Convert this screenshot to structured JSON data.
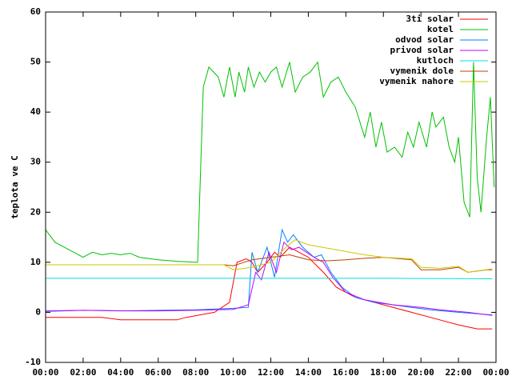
{
  "chart_data": {
    "type": "line",
    "y_label": "teplota ve C",
    "xlim": [
      0,
      24
    ],
    "ylim": [
      -10,
      60
    ],
    "xticks": [
      {
        "value": 0,
        "label": "00:00"
      },
      {
        "value": 2,
        "label": "02:00"
      },
      {
        "value": 4,
        "label": "04:00"
      },
      {
        "value": 6,
        "label": "06:00"
      },
      {
        "value": 8,
        "label": "08:00"
      },
      {
        "value": 10,
        "label": "10:00"
      },
      {
        "value": 12,
        "label": "12:00"
      },
      {
        "value": 14,
        "label": "14:00"
      },
      {
        "value": 16,
        "label": "16:00"
      },
      {
        "value": 18,
        "label": "18:00"
      },
      {
        "value": 20,
        "label": "20:00"
      },
      {
        "value": 22,
        "label": "22:00"
      },
      {
        "value": 24,
        "label": "00:00"
      }
    ],
    "yticks": [
      -10,
      0,
      10,
      20,
      30,
      40,
      50,
      60
    ],
    "legend": "top-right",
    "series": [
      {
        "name": "3ti solar",
        "color": "#ff0000",
        "x": [
          0,
          3,
          4,
          7,
          7.5,
          9,
          9.8,
          10.2,
          10.7,
          11,
          11.3,
          11.8,
          12.2,
          12.5,
          13,
          13.5,
          14,
          14.8,
          15.5,
          16.5,
          18,
          19.5,
          21,
          22,
          23,
          23.8
        ],
        "values": [
          -1,
          -1,
          -1.5,
          -1.5,
          -1,
          0,
          2,
          10,
          10.7,
          10,
          8,
          10,
          12,
          11,
          13,
          12,
          11,
          8,
          5,
          3,
          1.5,
          0,
          -1.5,
          -2.5,
          -3.3,
          -3.3
        ]
      },
      {
        "name": "kotel",
        "color": "#00c000",
        "x": [
          0,
          0.5,
          1,
          1.5,
          2,
          2.5,
          3,
          3.5,
          4,
          4.5,
          5,
          6,
          7,
          8,
          8.1,
          8.4,
          8.7,
          9.2,
          9.5,
          9.8,
          10.1,
          10.3,
          10.6,
          10.8,
          11.1,
          11.4,
          11.7,
          12,
          12.3,
          12.6,
          13,
          13.3,
          13.7,
          14.1,
          14.5,
          14.8,
          15.2,
          15.6,
          16,
          16.5,
          17,
          17.3,
          17.6,
          17.9,
          18.2,
          18.6,
          19,
          19.3,
          19.6,
          19.9,
          20.3,
          20.6,
          20.8,
          21.2,
          21.5,
          21.8,
          22,
          22.3,
          22.6,
          22.8,
          23,
          23.2,
          23.5,
          23.7,
          23.9
        ],
        "values": [
          16.5,
          14,
          13,
          12,
          11,
          12,
          11.5,
          11.8,
          11.5,
          11.8,
          11,
          10.5,
          10.2,
          10,
          10,
          45,
          49,
          47,
          43,
          49,
          43,
          48,
          44,
          49,
          45,
          48,
          46,
          48,
          49,
          45,
          50,
          44,
          47,
          48,
          50,
          43,
          46,
          47,
          44,
          41,
          35,
          40,
          33,
          38,
          32,
          33,
          31,
          36,
          33,
          38,
          33,
          40,
          37,
          39,
          33,
          30,
          35,
          22,
          19,
          50,
          27,
          20,
          35,
          43,
          25
        ]
      },
      {
        "name": "odvod solar",
        "color": "#0080ff",
        "x": [
          0,
          2,
          4,
          6,
          8,
          10,
          10.8,
          11,
          11.3,
          11.8,
          12.2,
          12.6,
          12.9,
          13.2,
          13.7,
          14.3,
          14.7,
          15.2,
          15.8,
          16.5,
          17.5,
          18.5,
          19.5,
          20.5,
          22,
          23.8
        ],
        "values": [
          0.2,
          0.4,
          0.3,
          0.4,
          0.5,
          0.8,
          1,
          12,
          8,
          13,
          7,
          16.5,
          14,
          15.5,
          13,
          11,
          11.5,
          8,
          5,
          3,
          2,
          1.5,
          1,
          0.5,
          0,
          -0.5
        ]
      },
      {
        "name": "privod solar",
        "color": "#c000ff",
        "x": [
          0,
          2,
          4.5,
          6,
          8,
          10,
          10.8,
          11.2,
          11.5,
          11.9,
          12.3,
          12.7,
          13.1,
          13.5,
          14.3,
          14.8,
          15.3,
          16,
          17,
          18.5,
          20,
          21,
          22.5,
          23.8
        ],
        "values": [
          0.3,
          0.4,
          0.3,
          0.3,
          0.4,
          0.6,
          1.5,
          8,
          6.5,
          12,
          8,
          14,
          12.5,
          13,
          11,
          10,
          7,
          4,
          2.5,
          1.5,
          1,
          0.5,
          0,
          -0.6
        ]
      },
      {
        "name": "kutloch",
        "color": "#00dddd",
        "x": [
          0,
          6,
          12,
          18,
          23.8
        ],
        "values": [
          6.8,
          6.8,
          6.8,
          6.8,
          6.7
        ]
      },
      {
        "name": "vymenik dole",
        "color": "#c04000",
        "x": [
          0,
          9.5,
          10,
          11,
          12,
          13,
          14,
          15,
          16,
          17,
          18,
          19.5,
          20,
          21,
          22,
          22.5,
          23.5,
          23.8
        ],
        "values": [
          9.5,
          9.5,
          9.3,
          10.5,
          11,
          11.5,
          10.5,
          10.3,
          10.5,
          10.8,
          11,
          10.5,
          8.5,
          8.5,
          9,
          8,
          8.5,
          8.5
        ]
      },
      {
        "name": "vymenik nahore",
        "color": "#c8c800",
        "x": [
          0,
          9.5,
          10,
          11,
          12,
          12.8,
          13.3,
          14,
          15.5,
          17,
          18,
          19.5,
          20,
          21,
          22,
          22.5,
          23.8
        ],
        "values": [
          9.5,
          9.5,
          8.5,
          9,
          10,
          13,
          14.5,
          13.5,
          12.5,
          11.5,
          11,
          10.7,
          9,
          8.8,
          9.2,
          8,
          8.7
        ]
      }
    ]
  }
}
